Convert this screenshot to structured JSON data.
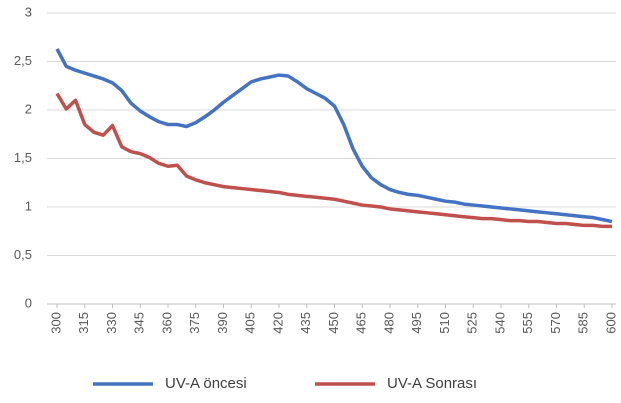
{
  "chart_data": {
    "type": "line",
    "x": [
      300,
      305,
      310,
      315,
      320,
      325,
      330,
      335,
      340,
      345,
      350,
      355,
      360,
      365,
      370,
      375,
      380,
      385,
      390,
      395,
      400,
      405,
      410,
      415,
      420,
      425,
      430,
      435,
      440,
      445,
      450,
      455,
      460,
      465,
      470,
      475,
      480,
      485,
      490,
      495,
      500,
      505,
      510,
      515,
      520,
      525,
      530,
      535,
      540,
      545,
      550,
      555,
      560,
      565,
      570,
      575,
      580,
      585,
      590,
      595,
      600
    ],
    "series": [
      {
        "name": "UV-A öncesi",
        "color": "#4472c4",
        "values": [
          2.63,
          2.45,
          2.41,
          2.38,
          2.35,
          2.32,
          2.28,
          2.2,
          2.07,
          1.99,
          1.93,
          1.88,
          1.85,
          1.85,
          1.83,
          1.87,
          1.93,
          2.0,
          2.08,
          2.15,
          2.22,
          2.29,
          2.32,
          2.34,
          2.36,
          2.35,
          2.29,
          2.22,
          2.17,
          2.12,
          2.04,
          1.85,
          1.6,
          1.42,
          1.3,
          1.23,
          1.18,
          1.15,
          1.13,
          1.12,
          1.1,
          1.08,
          1.06,
          1.05,
          1.03,
          1.02,
          1.01,
          1.0,
          0.99,
          0.98,
          0.97,
          0.96,
          0.95,
          0.94,
          0.93,
          0.92,
          0.91,
          0.9,
          0.89,
          0.87,
          0.85
        ]
      },
      {
        "name": "UV-A Sonrası",
        "color": "#c0504d",
        "values": [
          2.17,
          2.01,
          2.1,
          1.85,
          1.77,
          1.74,
          1.84,
          1.62,
          1.57,
          1.55,
          1.51,
          1.45,
          1.42,
          1.43,
          1.32,
          1.28,
          1.25,
          1.23,
          1.21,
          1.2,
          1.19,
          1.18,
          1.17,
          1.16,
          1.15,
          1.13,
          1.12,
          1.11,
          1.1,
          1.09,
          1.08,
          1.06,
          1.04,
          1.02,
          1.01,
          1.0,
          0.98,
          0.97,
          0.96,
          0.95,
          0.94,
          0.93,
          0.92,
          0.91,
          0.9,
          0.89,
          0.88,
          0.88,
          0.87,
          0.86,
          0.86,
          0.85,
          0.85,
          0.84,
          0.83,
          0.83,
          0.82,
          0.81,
          0.81,
          0.8,
          0.8
        ]
      }
    ],
    "xlim": [
      300,
      600
    ],
    "xticks": [
      300,
      315,
      330,
      345,
      360,
      375,
      390,
      405,
      420,
      435,
      450,
      465,
      480,
      495,
      510,
      525,
      540,
      555,
      570,
      585,
      600
    ],
    "ylim": [
      0,
      3
    ],
    "yticks": [
      0,
      {
        "value": 0.5,
        "label": "0,5"
      },
      1,
      {
        "value": 1.5,
        "label": "1,5"
      },
      2,
      {
        "value": 2.5,
        "label": "2,5"
      },
      3
    ],
    "grid": true,
    "legend": "bottom"
  }
}
